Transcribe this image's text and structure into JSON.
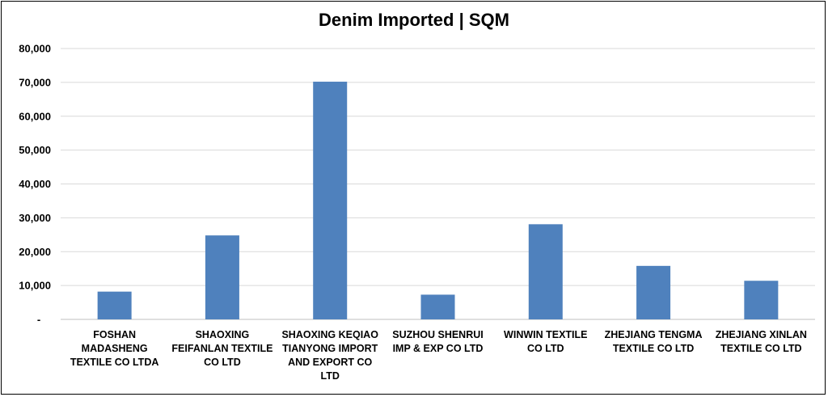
{
  "chart_data": {
    "type": "bar",
    "title": "Denim Imported | SQM",
    "xlabel": "",
    "ylabel": "",
    "ylim": [
      0,
      80000
    ],
    "grid": true,
    "legend": "none",
    "bar_color": "#4f81bd",
    "y_ticks": [
      {
        "value": 0,
        "label": "-"
      },
      {
        "value": 10000,
        "label": "10,000"
      },
      {
        "value": 20000,
        "label": "20,000"
      },
      {
        "value": 30000,
        "label": "30,000"
      },
      {
        "value": 40000,
        "label": "40,000"
      },
      {
        "value": 50000,
        "label": "50,000"
      },
      {
        "value": 60000,
        "label": "60,000"
      },
      {
        "value": 70000,
        "label": "70,000"
      },
      {
        "value": 80000,
        "label": "80,000"
      }
    ],
    "categories": [
      "FOSHAN MADASHENG TEXTILE CO LTDA",
      "SHAOXING FEIFANLAN TEXTILE CO LTD",
      "SHAOXING KEQIAO TIANYONG IMPORT AND EXPORT CO LTD",
      "SUZHOU SHENRUI IMP & EXP CO LTD",
      "WINWIN TEXTILE CO LTD",
      "ZHEJIANG TENGMA TEXTILE CO LTD",
      "ZHEJIANG XINLAN TEXTILE CO LTD"
    ],
    "category_lines": [
      [
        "FOSHAN",
        "MADASHENG",
        "TEXTILE CO LTDA"
      ],
      [
        "SHAOXING",
        "FEIFANLAN TEXTILE",
        "CO LTD"
      ],
      [
        "SHAOXING KEQIAO",
        "TIANYONG IMPORT",
        "AND EXPORT CO",
        "LTD"
      ],
      [
        "SUZHOU SHENRUI",
        "IMP & EXP CO LTD"
      ],
      [
        "WINWIN TEXTILE",
        "CO LTD"
      ],
      [
        "ZHEJIANG TENGMA",
        "TEXTILE CO LTD"
      ],
      [
        "ZHEJIANG XINLAN",
        "TEXTILE CO LTD"
      ]
    ],
    "values": [
      8200,
      24800,
      70200,
      7300,
      28100,
      15800,
      11400
    ]
  }
}
